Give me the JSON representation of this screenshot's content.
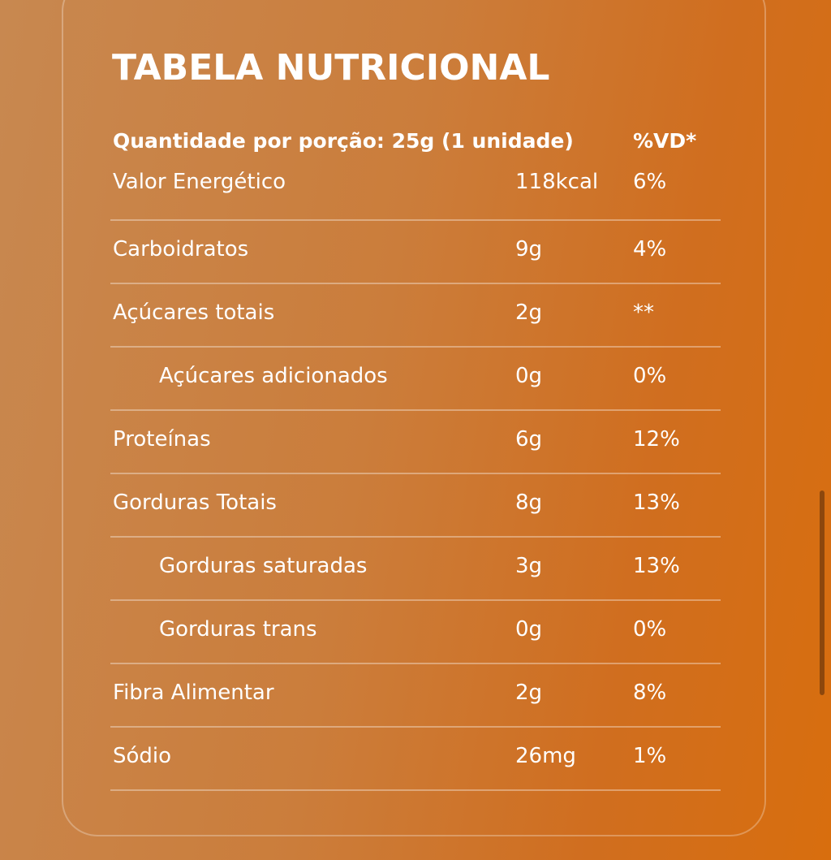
{
  "title": "TABELA NUTRICIONAL",
  "header": {
    "serving": "Quantidade por porção: 25g (1 unidade)",
    "dv": "%VD*"
  },
  "rows": [
    {
      "name": "Valor Energético",
      "qty": "118kcal",
      "dv": "6%"
    },
    {
      "name": "Carboidratos",
      "qty": "9g",
      "dv": "4%"
    },
    {
      "name": "Açúcares totais",
      "qty": "2g",
      "dv": "**"
    },
    {
      "name": "Açúcares adicionados",
      "qty": "0g",
      "dv": "0%"
    },
    {
      "name": "Proteínas",
      "qty": "6g",
      "dv": "12%"
    },
    {
      "name": "Gorduras Totais",
      "qty": "8g",
      "dv": "13%"
    },
    {
      "name": "Gorduras saturadas",
      "qty": "3g",
      "dv": "13%"
    },
    {
      "name": "Gorduras trans",
      "qty": "0g",
      "dv": "0%"
    },
    {
      "name": "Fibra Alimentar",
      "qty": "2g",
      "dv": "8%"
    },
    {
      "name": "Sódio",
      "qty": "26mg",
      "dv": "1%"
    }
  ],
  "colors": {
    "background_start": "#c88850",
    "background_end": "#d86e0e",
    "text": "#ffffff"
  }
}
